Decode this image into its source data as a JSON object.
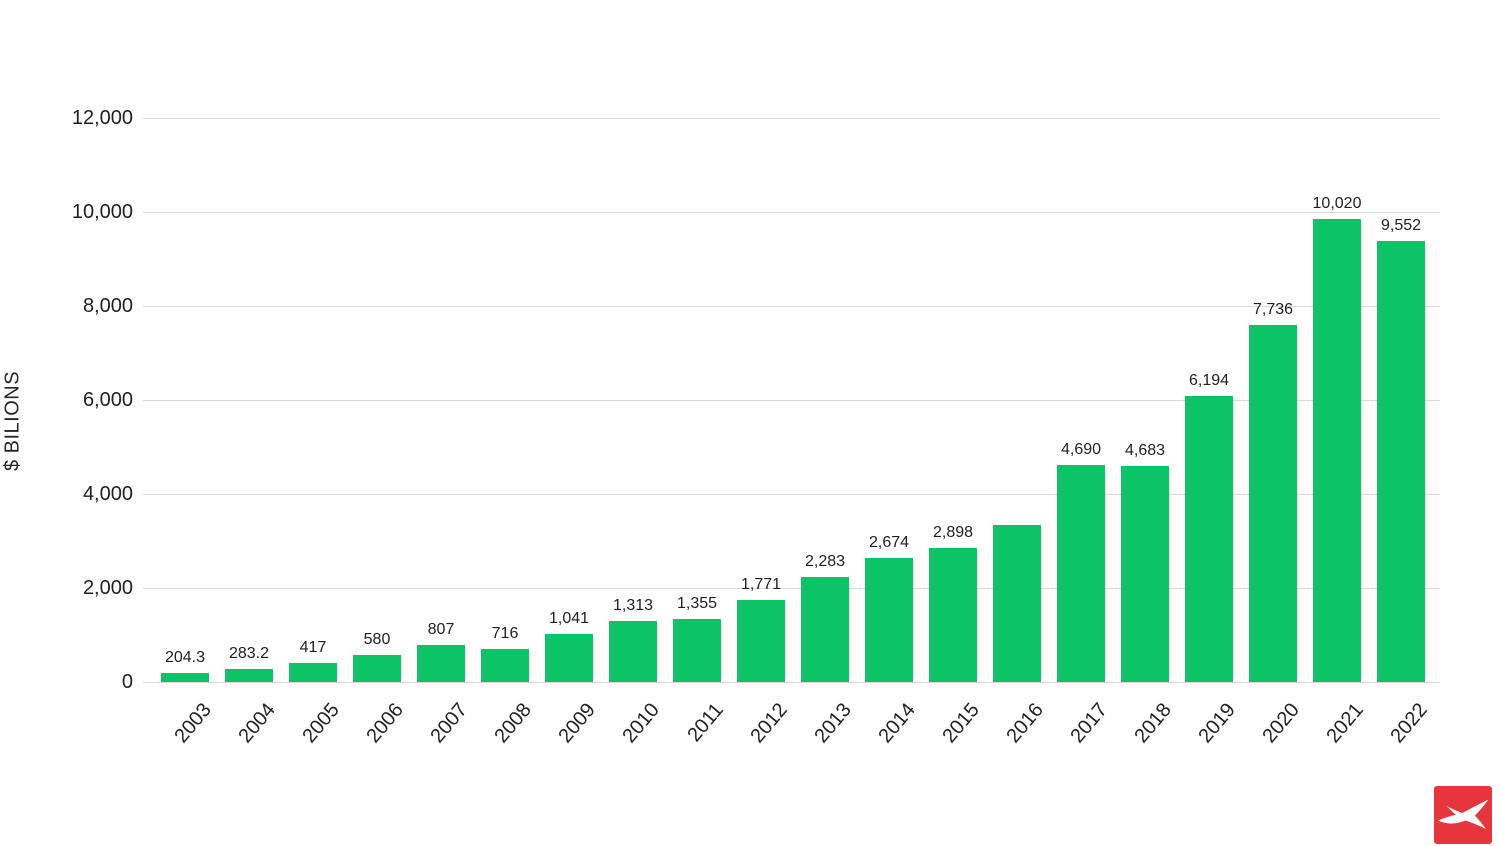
{
  "chart_data": {
    "type": "bar",
    "title": "",
    "xlabel": "",
    "ylabel": "$ BILIONS",
    "categories": [
      "2003",
      "2004",
      "2005",
      "2006",
      "2007",
      "2008",
      "2009",
      "2010",
      "2011",
      "2012",
      "2013",
      "2014",
      "2015",
      "2016",
      "2017",
      "2018",
      "2019",
      "2020",
      "2021",
      "2022"
    ],
    "values": [
      204.3,
      283.2,
      417,
      580,
      807,
      716,
      1041,
      1313,
      1355,
      1771,
      2283,
      2674,
      2898,
      3400,
      4690,
      4683,
      6194,
      7736,
      10020,
      9552
    ],
    "bar_labels": [
      "204.3",
      "283.2",
      "417",
      "580",
      "807",
      "716",
      "1,041",
      "1,313",
      "1,355",
      "1,771",
      "2,283",
      "2,674",
      "2,898",
      "",
      "4,690",
      "4,683",
      "6,194",
      "7,736",
      "10,020",
      "9,552"
    ],
    "y_ticks": [
      "0",
      "2,000",
      "4,000",
      "6,000",
      "8,000",
      "10,000",
      "12,000"
    ],
    "y_tick_values": [
      0,
      2000,
      4000,
      6000,
      8000,
      10000,
      12000
    ],
    "ylim": [
      0,
      12000
    ],
    "grid": "horizontal",
    "legend": "none"
  },
  "colors": {
    "bar": "#0dc368",
    "grid": "#d9d9d9",
    "text": "#212121",
    "background": "#ffffff",
    "logo_red": "#e5353d",
    "logo_mark": "#ffffff"
  },
  "logo": {
    "icon": "xtb-logo"
  }
}
